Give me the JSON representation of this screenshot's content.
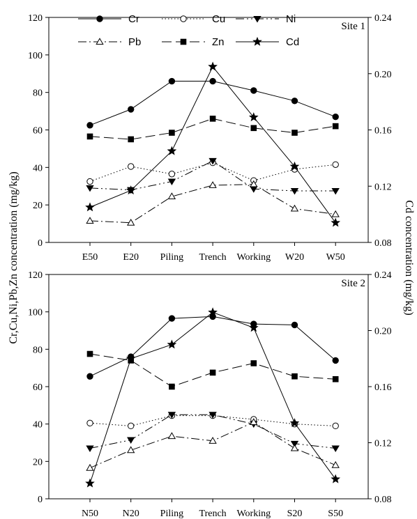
{
  "chart_data": [
    {
      "type": "line",
      "panel_label": "Site 1",
      "categories": [
        "E50",
        "E20",
        "Piling",
        "Trench",
        "Working",
        "W20",
        "W50"
      ],
      "ylim": [
        0,
        120
      ],
      "y_ticks": [
        "0",
        "20",
        "40",
        "60",
        "80",
        "100",
        "120"
      ],
      "y2lim": [
        0.08,
        0.24
      ],
      "y2_ticks": [
        "0.08",
        "0.12",
        "0.16",
        "0.20",
        "0.24"
      ],
      "series": [
        {
          "name": "Cr",
          "axis": "left",
          "values": [
            62.5,
            71,
            86,
            86,
            81,
            75.5,
            67
          ]
        },
        {
          "name": "Cu",
          "axis": "left",
          "values": [
            32.5,
            40.5,
            36.5,
            42.5,
            33,
            39,
            41.5
          ]
        },
        {
          "name": "Ni",
          "axis": "left",
          "values": [
            29,
            28,
            32.5,
            43.5,
            28.5,
            27.5,
            27.5
          ]
        },
        {
          "name": "Pb",
          "axis": "left",
          "values": [
            11.5,
            10.5,
            24.5,
            30.5,
            31,
            18,
            15
          ]
        },
        {
          "name": "Zn",
          "axis": "left",
          "values": [
            56.5,
            55,
            58.5,
            66,
            61,
            58.5,
            62
          ]
        },
        {
          "name": "Cd",
          "axis": "right",
          "values": [
            0.105,
            0.117,
            0.145,
            0.205,
            0.169,
            0.134,
            0.094
          ]
        }
      ]
    },
    {
      "type": "line",
      "panel_label": "Site 2",
      "categories": [
        "N50",
        "N20",
        "Piling",
        "Trench",
        "Working",
        "S20",
        "S50"
      ],
      "ylim": [
        0,
        120
      ],
      "y_ticks": [
        "0",
        "20",
        "40",
        "60",
        "80",
        "100",
        "120"
      ],
      "y2lim": [
        0.08,
        0.24
      ],
      "y2_ticks": [
        "0.08",
        "0.12",
        "0.16",
        "0.20",
        "0.24"
      ],
      "series": [
        {
          "name": "Cr",
          "axis": "left",
          "values": [
            65.5,
            76,
            96.5,
            97.5,
            93.5,
            93,
            74
          ]
        },
        {
          "name": "Cu",
          "axis": "left",
          "values": [
            40.5,
            39,
            44.5,
            44.5,
            42.5,
            40,
            39
          ]
        },
        {
          "name": "Ni",
          "axis": "left",
          "values": [
            27,
            31.5,
            45,
            45,
            40,
            29.5,
            27
          ]
        },
        {
          "name": "Pb",
          "axis": "left",
          "values": [
            16.5,
            26,
            33.5,
            31,
            41,
            27,
            18
          ]
        },
        {
          "name": "Zn",
          "axis": "left",
          "values": [
            77.5,
            74,
            60,
            67.5,
            72.5,
            65.5,
            64
          ]
        },
        {
          "name": "Cd",
          "axis": "right",
          "values": [
            0.091,
            0.18,
            0.19,
            0.213,
            0.202,
            0.134,
            0.094
          ]
        }
      ]
    }
  ],
  "y_axis_label": "Cr,Cu,Ni,Pb,Zn concentration (mg/kg)",
  "y2_axis_label": "Cd concentration (mg/kg)",
  "legend": [
    {
      "name": "Cr",
      "marker": "filled-circle",
      "line": "solid"
    },
    {
      "name": "Cu",
      "marker": "open-circle",
      "line": "dotted"
    },
    {
      "name": "Ni",
      "marker": "filled-down-triangle",
      "line": "dash-dot-dot"
    },
    {
      "name": "Pb",
      "marker": "open-up-triangle",
      "line": "dash-dot"
    },
    {
      "name": "Zn",
      "marker": "filled-square",
      "line": "long-dash"
    },
    {
      "name": "Cd",
      "marker": "filled-star",
      "line": "solid"
    }
  ]
}
